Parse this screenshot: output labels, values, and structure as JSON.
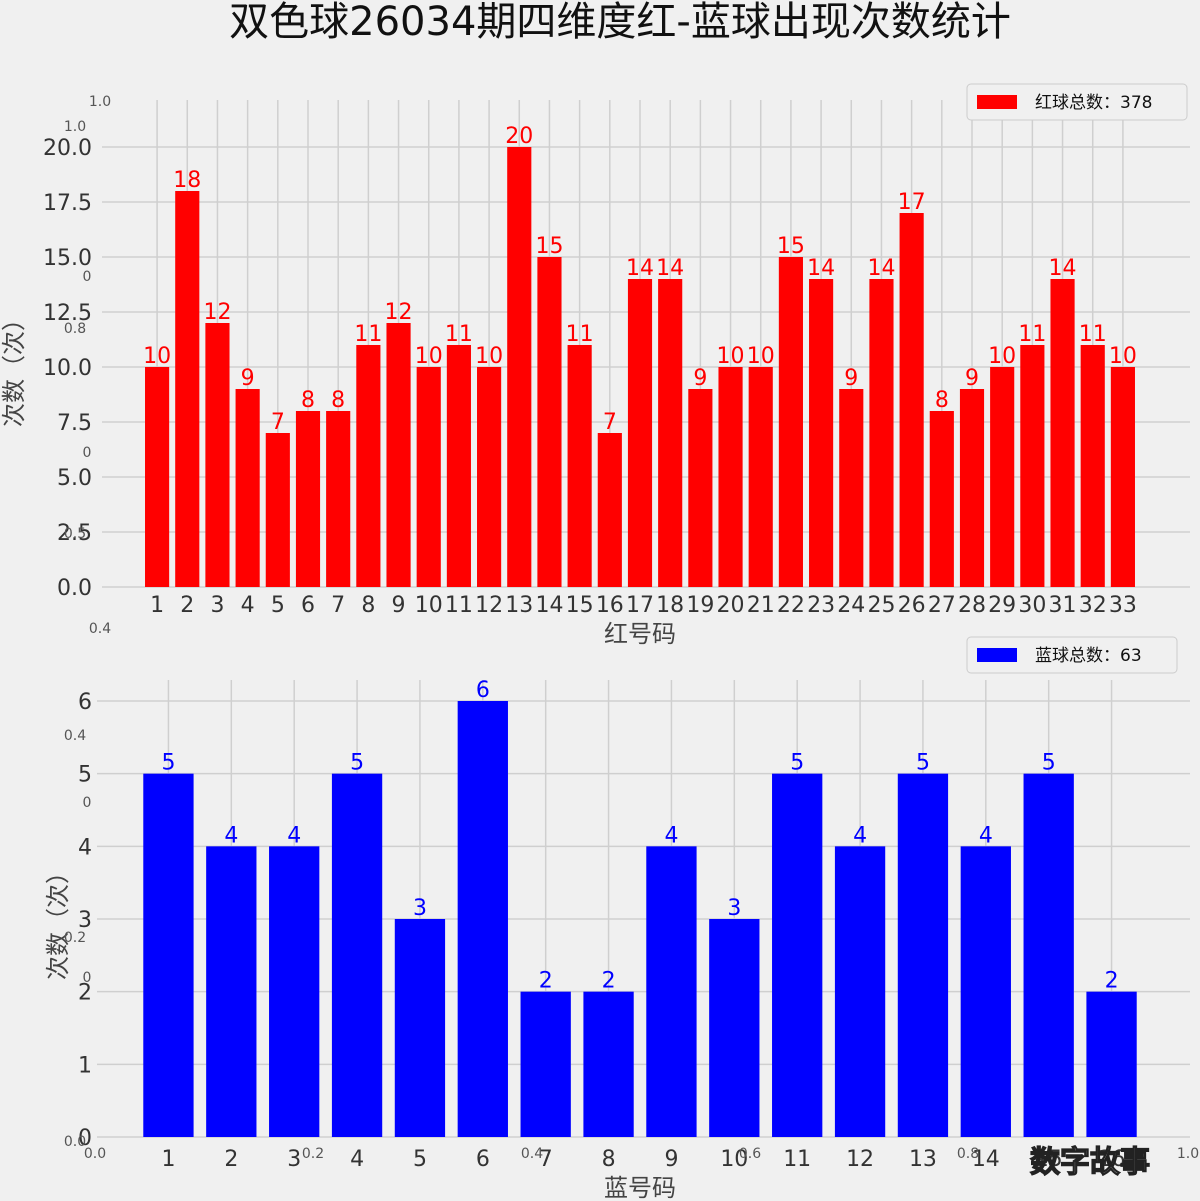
{
  "title": "双色球26034期四维度红-蓝球出现次数统计",
  "watermark": "数字故事",
  "ghost_ticks": [
    "1.0",
    "1.0",
    "0",
    "0.8",
    "0",
    "0.5",
    "0.4",
    "0.4",
    "0",
    "0.2",
    "0",
    "0.0",
    "0.0",
    "0.2",
    "0.4",
    "0.6",
    "0.8",
    "1.0"
  ],
  "chart_data": [
    {
      "type": "bar",
      "color": "#ff0000",
      "legend": "红球总数：378",
      "xlabel": "红号码",
      "ylabel": "次数（次）",
      "ylim": [
        0,
        20
      ],
      "yticks": [
        "0.0",
        "2.5",
        "5.0",
        "7.5",
        "10.0",
        "12.5",
        "15.0",
        "17.5",
        "20.0"
      ],
      "ytick_values": [
        0,
        2.5,
        5,
        7.5,
        10,
        12.5,
        15,
        17.5,
        20
      ],
      "categories": [
        "1",
        "2",
        "3",
        "4",
        "5",
        "6",
        "7",
        "8",
        "9",
        "10",
        "11",
        "12",
        "13",
        "14",
        "15",
        "16",
        "17",
        "18",
        "19",
        "20",
        "21",
        "22",
        "23",
        "24",
        "25",
        "26",
        "27",
        "28",
        "29",
        "30",
        "31",
        "32",
        "33"
      ],
      "values": [
        10,
        18,
        12,
        9,
        7,
        8,
        8,
        11,
        12,
        10,
        11,
        10,
        20,
        15,
        11,
        7,
        14,
        14,
        9,
        10,
        10,
        15,
        14,
        9,
        14,
        17,
        8,
        9,
        10,
        11,
        14,
        11,
        10
      ],
      "grid": true,
      "legend_position": "top-right"
    },
    {
      "type": "bar",
      "color": "#0000ff",
      "legend": "蓝球总数：63",
      "xlabel": "蓝号码",
      "ylabel": "次数（次）",
      "ylim": [
        0,
        6
      ],
      "yticks": [
        "0",
        "1",
        "2",
        "3",
        "4",
        "5",
        "6"
      ],
      "ytick_values": [
        0,
        1,
        2,
        3,
        4,
        5,
        6
      ],
      "categories": [
        "1",
        "2",
        "3",
        "4",
        "5",
        "6",
        "7",
        "8",
        "9",
        "10",
        "11",
        "12",
        "13",
        "14",
        "15",
        "16"
      ],
      "values": [
        5,
        4,
        4,
        5,
        3,
        6,
        2,
        2,
        4,
        3,
        5,
        4,
        5,
        4,
        5,
        2
      ],
      "grid": true,
      "legend_position": "top-right"
    }
  ]
}
